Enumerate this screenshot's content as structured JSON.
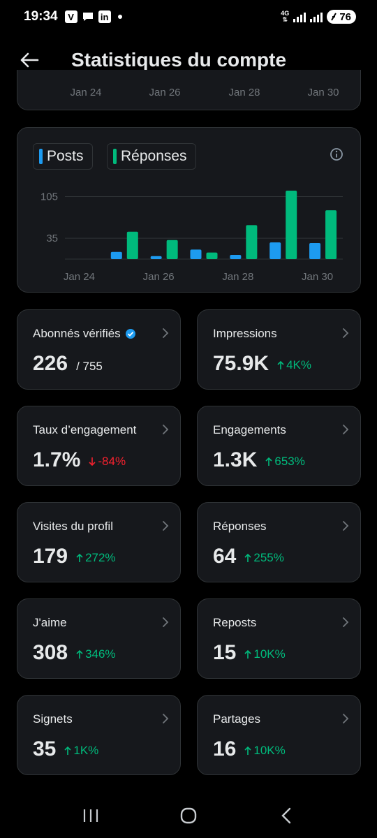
{
  "status": {
    "time": "19:34",
    "apps": [
      "V",
      "LinkedIn"
    ],
    "network": "4G",
    "battery": "76"
  },
  "header": {
    "title": "Statistiques du compte"
  },
  "top_chart_ticks": [
    "Jan 24",
    "Jan 26",
    "Jan 28",
    "Jan 30"
  ],
  "legend": {
    "posts": "Posts",
    "replies": "Réponses"
  },
  "colors": {
    "posts": "#1d9bf0",
    "replies": "#00ba7c",
    "up": "#00ba7c",
    "down": "#f4212e"
  },
  "chart_data": {
    "type": "bar",
    "categories": [
      "Jan 24",
      "Jan 25",
      "Jan 26",
      "Jan 27",
      "Jan 28",
      "Jan 29",
      "Jan 30"
    ],
    "x_tick_labels": [
      "Jan 24",
      "Jan 26",
      "Jan 28",
      "Jan 30"
    ],
    "y_tick_labels": [
      105,
      35
    ],
    "ylim": [
      0,
      115
    ],
    "series": [
      {
        "name": "Posts",
        "color": "#1d9bf0",
        "values": [
          0,
          12,
          5,
          16,
          7,
          28,
          27
        ]
      },
      {
        "name": "Réponses",
        "color": "#00ba7c",
        "values": [
          0,
          46,
          32,
          11,
          57,
          115,
          82
        ]
      }
    ],
    "grid": true,
    "legend": "top-left"
  },
  "stats": [
    {
      "label": "Abonnés vérifiés",
      "verified": true,
      "value": "226",
      "sub": "/ 755",
      "delta": "",
      "dir": ""
    },
    {
      "label": "Impressions",
      "value": "75.9K",
      "sub": "",
      "delta": "4K%",
      "dir": "up"
    },
    {
      "label": "Taux d’engagement",
      "value": "1.7%",
      "sub": "",
      "delta": "-84%",
      "dir": "down"
    },
    {
      "label": "Engagements",
      "value": "1.3K",
      "sub": "",
      "delta": "653%",
      "dir": "up"
    },
    {
      "label": "Visites du profil",
      "value": "179",
      "sub": "",
      "delta": "272%",
      "dir": "up"
    },
    {
      "label": "Réponses",
      "value": "64",
      "sub": "",
      "delta": "255%",
      "dir": "up"
    },
    {
      "label": "J'aime",
      "value": "308",
      "sub": "",
      "delta": "346%",
      "dir": "up"
    },
    {
      "label": "Reposts",
      "value": "15",
      "sub": "",
      "delta": "10K%",
      "dir": "up"
    },
    {
      "label": "Signets",
      "value": "35",
      "sub": "",
      "delta": "1K%",
      "dir": "up"
    },
    {
      "label": "Partages",
      "value": "16",
      "sub": "",
      "delta": "10K%",
      "dir": "up"
    }
  ],
  "icons": {
    "back": "arrow-left-icon",
    "info": "info-icon",
    "chevron": "chevron-right-icon",
    "verified": "verified-badge-icon"
  }
}
